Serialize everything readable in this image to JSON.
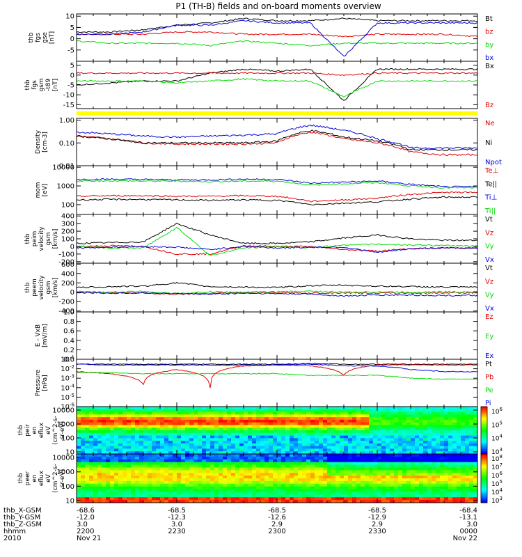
{
  "title": "P1 (TH-B) fields and on-board moments overview",
  "colors": {
    "black": "#000000",
    "red": "#dd0000",
    "green": "#00dd00",
    "blue": "#0000dd",
    "yellow": "#ffff00",
    "panel_bg": "#ffffff"
  },
  "chart_data": [
    {
      "type": "line",
      "ylabel": [
        "thb",
        "fgs",
        "gse",
        "[nT]"
      ],
      "yticks": [
        10,
        5,
        0,
        -5
      ],
      "ylim": [
        -10,
        11
      ],
      "legend": [
        {
          "name": "Bt",
          "color": "#000000"
        },
        {
          "name": "bz",
          "color": "#dd0000"
        },
        {
          "name": "by",
          "color": "#00dd00"
        },
        {
          "name": "bx",
          "color": "#0000dd"
        }
      ],
      "x": [
        "22:00",
        "22:10",
        "22:20",
        "22:30",
        "22:40",
        "22:50",
        "23:00",
        "23:10",
        "23:20",
        "23:30",
        "23:40",
        "23:50",
        "24:00"
      ],
      "series": [
        {
          "name": "Bt",
          "color": "#000000",
          "values": [
            3,
            3,
            4,
            6,
            7,
            9,
            8,
            8,
            9,
            8,
            8,
            8,
            8
          ]
        },
        {
          "name": "bz",
          "color": "#dd0000",
          "values": [
            2,
            2,
            2,
            3,
            3,
            2,
            2,
            2,
            1,
            2,
            2,
            2,
            1
          ]
        },
        {
          "name": "by",
          "color": "#00dd00",
          "values": [
            -1,
            -2,
            -2,
            -2,
            -3,
            -1,
            -2,
            -3,
            -2,
            -2,
            -2,
            -2,
            -2
          ]
        },
        {
          "name": "bx",
          "color": "#0000dd",
          "values": [
            2,
            2,
            3,
            6,
            6,
            8,
            7,
            7,
            -8,
            7,
            7,
            7,
            7
          ]
        }
      ]
    },
    {
      "type": "line",
      "ylabel": [
        "thb",
        "fgs",
        "gsm",
        "-t89",
        "[nT]"
      ],
      "yticks": [
        5,
        0,
        -5,
        -10,
        -15
      ],
      "ylim": [
        -17,
        7
      ],
      "legend": [
        {
          "name": "Bx",
          "color": "#000000"
        },
        {
          "name": "Bz",
          "color": "#dd0000"
        }
      ],
      "x": [
        "22:00",
        "22:10",
        "22:20",
        "22:30",
        "22:40",
        "22:50",
        "23:00",
        "23:10",
        "23:20",
        "23:30",
        "23:40",
        "23:50",
        "24:00"
      ],
      "series": [
        {
          "name": "Bx",
          "color": "#000000",
          "values": [
            -5,
            -4,
            -3,
            -3,
            1,
            3,
            2,
            3,
            -13,
            3,
            3,
            3,
            3
          ]
        },
        {
          "name": "Bz",
          "color": "#dd0000",
          "values": [
            1,
            1,
            1,
            1,
            1,
            1,
            1,
            1,
            0,
            1,
            1,
            1,
            1
          ]
        },
        {
          "name": "green",
          "color": "#00dd00",
          "values": [
            -3,
            -3,
            -3,
            -4,
            -3,
            -2,
            -3,
            -3,
            -11,
            -3,
            -3,
            -3,
            -3
          ]
        }
      ]
    },
    {
      "type": "line",
      "ylabel": [
        "Density",
        "[cm-3]"
      ],
      "yticks": [
        "1.00",
        "0.10",
        "0.01"
      ],
      "ylog": true,
      "ylim": [
        0.01,
        1.2
      ],
      "legend": [
        {
          "name": "Ne",
          "color": "#dd0000"
        },
        {
          "name": "Ni",
          "color": "#000000"
        },
        {
          "name": "Npot",
          "color": "#0000dd"
        }
      ],
      "x": [
        "22:00",
        "22:10",
        "22:20",
        "22:30",
        "22:40",
        "22:50",
        "23:00",
        "23:10",
        "23:20",
        "23:30",
        "23:40",
        "23:50",
        "24:00"
      ],
      "series": [
        {
          "name": "Ne",
          "color": "#dd0000",
          "values": [
            0.2,
            0.15,
            0.1,
            0.09,
            0.09,
            0.09,
            0.1,
            0.3,
            0.15,
            0.1,
            0.04,
            0.03,
            0.03
          ]
        },
        {
          "name": "Ni",
          "color": "#000000",
          "values": [
            0.2,
            0.15,
            0.1,
            0.1,
            0.1,
            0.1,
            0.12,
            0.35,
            0.18,
            0.12,
            0.05,
            0.05,
            0.05
          ]
        },
        {
          "name": "Npot",
          "color": "#0000dd",
          "values": [
            0.3,
            0.25,
            0.2,
            0.18,
            0.2,
            0.22,
            0.25,
            0.6,
            0.35,
            0.15,
            0.06,
            0.06,
            0.06
          ]
        }
      ]
    },
    {
      "type": "line",
      "ylabel": [
        "mom",
        "[eV]"
      ],
      "yticks": [
        10000,
        1000,
        100
      ],
      "ylog": true,
      "ylim": [
        30,
        12000
      ],
      "legend": [
        {
          "name": "Te⊥",
          "color": "#dd0000"
        },
        {
          "name": "Te||",
          "color": "#000000"
        },
        {
          "name": "Ti⊥",
          "color": "#0000dd"
        },
        {
          "name": "Ti||",
          "color": "#00dd00"
        }
      ],
      "x": [
        "22:00",
        "22:10",
        "22:20",
        "22:30",
        "22:40",
        "22:50",
        "23:00",
        "23:10",
        "23:20",
        "23:30",
        "23:40",
        "23:50",
        "24:00"
      ],
      "series": [
        {
          "name": "Ti⊥",
          "color": "#0000dd",
          "values": [
            2200,
            2300,
            2200,
            2100,
            2100,
            2300,
            2200,
            1400,
            1600,
            1800,
            1200,
            900,
            900
          ]
        },
        {
          "name": "Ti||",
          "color": "#00dd00",
          "values": [
            1800,
            1900,
            1800,
            1800,
            1700,
            1800,
            1800,
            1100,
            1300,
            1500,
            1000,
            800,
            800
          ]
        },
        {
          "name": "Te⊥",
          "color": "#dd0000",
          "values": [
            280,
            300,
            300,
            280,
            280,
            300,
            280,
            150,
            180,
            220,
            350,
            450,
            450
          ]
        },
        {
          "name": "Te||",
          "color": "#000000",
          "values": [
            180,
            190,
            190,
            180,
            170,
            180,
            170,
            100,
            120,
            140,
            200,
            250,
            250
          ]
        }
      ]
    },
    {
      "type": "line",
      "ylabel": [
        "thb",
        "peim",
        "velocity",
        "gsm",
        "[km/s]"
      ],
      "yticks": [
        400,
        300,
        200,
        100,
        0,
        -100,
        -200
      ],
      "ylim": [
        -220,
        420
      ],
      "legend": [
        {
          "name": "Vt",
          "color": "#000000"
        },
        {
          "name": "Vz",
          "color": "#dd0000"
        },
        {
          "name": "Vy",
          "color": "#00dd00"
        },
        {
          "name": "Vx",
          "color": "#0000dd"
        }
      ],
      "x": [
        "22:00",
        "22:10",
        "22:20",
        "22:30",
        "22:40",
        "22:50",
        "23:00",
        "23:10",
        "23:20",
        "23:30",
        "23:40",
        "23:50",
        "24:00"
      ],
      "series": [
        {
          "name": "Vt",
          "color": "#000000",
          "values": [
            40,
            50,
            60,
            300,
            150,
            40,
            40,
            60,
            110,
            150,
            100,
            80,
            80
          ]
        },
        {
          "name": "Vz",
          "color": "#dd0000",
          "values": [
            0,
            10,
            0,
            -100,
            -100,
            10,
            0,
            0,
            -40,
            -60,
            -30,
            -20,
            -20
          ]
        },
        {
          "name": "Vy",
          "color": "#00dd00",
          "values": [
            0,
            -20,
            -20,
            250,
            -120,
            -20,
            0,
            -20,
            20,
            30,
            20,
            10,
            10
          ]
        },
        {
          "name": "Vx",
          "color": "#0000dd",
          "values": [
            -20,
            -10,
            0,
            -10,
            -40,
            0,
            -20,
            -10,
            -10,
            -80,
            -30,
            -20,
            -20
          ]
        }
      ]
    },
    {
      "type": "line",
      "ylabel": [
        "thb",
        "peem",
        "velocity",
        "gsm",
        "[km/s]"
      ],
      "yticks": [
        600,
        400,
        200,
        0,
        -200,
        -400
      ],
      "ylim": [
        -420,
        620
      ],
      "legend": [
        {
          "name": "Vt",
          "color": "#000000"
        },
        {
          "name": "Vz",
          "color": "#dd0000"
        },
        {
          "name": "Vy",
          "color": "#00dd00"
        },
        {
          "name": "Vx",
          "color": "#0000dd"
        }
      ],
      "x": [
        "22:00",
        "22:10",
        "22:20",
        "22:30",
        "22:40",
        "22:50",
        "23:00",
        "23:10",
        "23:20",
        "23:30",
        "23:40",
        "23:50",
        "24:00"
      ],
      "series": [
        {
          "name": "Vt",
          "color": "#000000",
          "values": [
            100,
            120,
            130,
            200,
            120,
            110,
            100,
            140,
            150,
            130,
            120,
            110,
            110
          ]
        },
        {
          "name": "Vz",
          "color": "#dd0000",
          "values": [
            0,
            -10,
            -20,
            -40,
            -20,
            -10,
            -10,
            -20,
            -10,
            -20,
            -20,
            -10,
            -10
          ]
        },
        {
          "name": "Vy",
          "color": "#00dd00",
          "values": [
            10,
            0,
            20,
            -30,
            10,
            0,
            10,
            20,
            0,
            10,
            0,
            10,
            10
          ]
        },
        {
          "name": "Vx",
          "color": "#0000dd",
          "values": [
            -10,
            -20,
            -10,
            -30,
            -40,
            -20,
            -30,
            -40,
            -80,
            -60,
            -60,
            -70,
            -70
          ]
        }
      ]
    },
    {
      "type": "line",
      "ylabel": [
        "E - VxB",
        "[mV/m]"
      ],
      "yticks": [
        "1.0",
        "0.8",
        "0.6",
        "0.4",
        "0.2",
        "0.0"
      ],
      "ylim": [
        0,
        1
      ],
      "legend": [
        {
          "name": "Ez",
          "color": "#dd0000"
        },
        {
          "name": "Ey",
          "color": "#00dd00"
        },
        {
          "name": "Ex",
          "color": "#0000dd"
        }
      ],
      "x": [],
      "series": []
    },
    {
      "type": "line",
      "ylabel": [
        "Pressure",
        "[nPa]"
      ],
      "yticks": [
        "10^-1",
        "10^-2",
        "10^-3",
        "10^-4",
        "10^-5",
        "10^-6"
      ],
      "ylog": true,
      "ylim": [
        1e-06,
        0.1
      ],
      "legend": [
        {
          "name": "Pt",
          "color": "#000000"
        },
        {
          "name": "Pb",
          "color": "#dd0000"
        },
        {
          "name": "Pe",
          "color": "#00dd00"
        },
        {
          "name": "Pi",
          "color": "#0000dd"
        }
      ],
      "x": [
        "22:00",
        "22:10",
        "22:20",
        "22:30",
        "22:40",
        "22:50",
        "23:00",
        "23:10",
        "23:20",
        "23:30",
        "23:40",
        "23:50",
        "24:00"
      ],
      "series": [
        {
          "name": "Pt",
          "color": "#000000",
          "values": [
            0.03,
            0.03,
            0.03,
            0.03,
            0.03,
            0.03,
            0.03,
            0.035,
            0.03,
            0.03,
            0.03,
            0.03,
            0.03
          ]
        },
        {
          "name": "Pb",
          "color": "#dd0000",
          "values": [
            0.005,
            0.003,
            0.0002,
            0.008,
            0.0001,
            0.02,
            0.025,
            0.02,
            0.002,
            0.025,
            0.025,
            0.025,
            0.025
          ]
        },
        {
          "name": "Pe",
          "color": "#00dd00",
          "values": [
            0.004,
            0.004,
            0.003,
            0.003,
            0.003,
            0.003,
            0.003,
            0.002,
            0.002,
            0.002,
            0.001,
            0.0008,
            0.0008
          ]
        },
        {
          "name": "Pi",
          "color": "#0000dd",
          "values": [
            0.03,
            0.025,
            0.025,
            0.025,
            0.025,
            0.025,
            0.025,
            0.03,
            0.02,
            0.02,
            0.008,
            0.005,
            0.005
          ]
        }
      ]
    },
    {
      "type": "heatmap",
      "ylabel": [
        "thb",
        "peir",
        "en",
        "eflux",
        "eV",
        "(cm^2-s-",
        "sr-eV)"
      ],
      "yticks": [
        10000,
        1000,
        100,
        10
      ],
      "ylog": true,
      "colorbar_ticks": [
        "10^6",
        "10^5",
        "10^4",
        "10^3"
      ],
      "description_free": true
    },
    {
      "type": "heatmap",
      "ylabel": [
        "thb",
        "peer",
        "en",
        "eflux",
        "eV",
        "(cm^2-s-",
        "sr-eV)"
      ],
      "yticks": [
        10000,
        1000,
        100,
        10
      ],
      "ylog": true,
      "colorbar_ticks": [
        "10^8",
        "10^7",
        "10^6",
        "10^5",
        "10^4",
        "10^3"
      ]
    }
  ],
  "xaxis": {
    "row_labels": [
      "thb_X-GSM",
      "thb_Y-GSM",
      "thb_Z-GSM",
      "hhmm",
      "2010"
    ],
    "columns": [
      {
        "values": [
          "-68.6",
          "-12.0",
          "3.0",
          "2200",
          "Nov 21"
        ]
      },
      {
        "values": [
          "-68.5",
          "-12.3",
          "3.0",
          "2230",
          ""
        ]
      },
      {
        "values": [
          "-68.5",
          "-12.6",
          "2.9",
          "2300",
          ""
        ]
      },
      {
        "values": [
          "-68.5",
          "-12.9",
          "2.9",
          "2330",
          ""
        ]
      },
      {
        "values": [
          "-68.4",
          "-13.1",
          "3.0",
          "0000",
          "Nov 22"
        ]
      }
    ]
  }
}
